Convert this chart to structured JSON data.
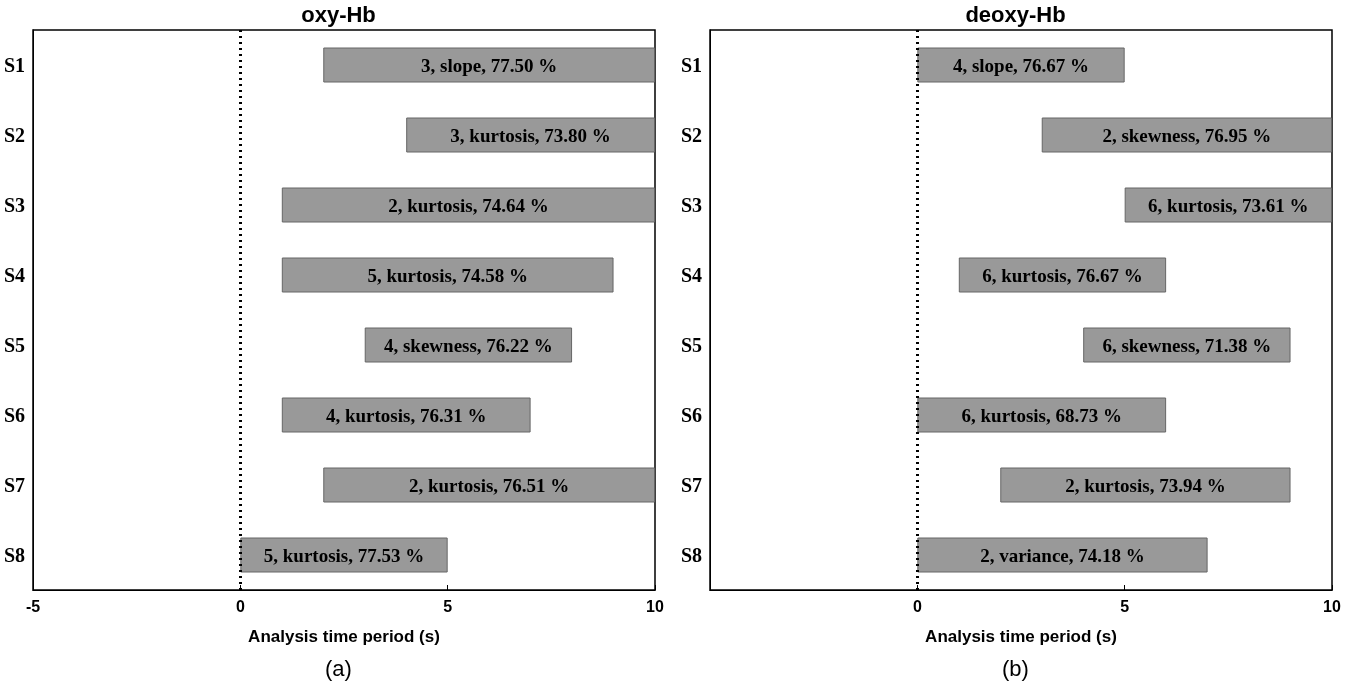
{
  "chart_data": [
    {
      "type": "bar",
      "orientation": "horizontal",
      "title": "oxy-Hb",
      "xlabel": "Analysis time period (s)",
      "categories": [
        "S1",
        "S2",
        "S3",
        "S4",
        "S5",
        "S6",
        "S7",
        "S8"
      ],
      "base": [
        2,
        4,
        1,
        1,
        3,
        1,
        2,
        0
      ],
      "values": [
        8,
        6,
        9,
        8,
        5,
        6,
        8,
        5
      ],
      "color": "#999999",
      "xlim": [
        -5,
        10
      ],
      "xticks": [
        -5,
        0,
        5,
        10
      ],
      "ref_lines": [
        {
          "axis": "x",
          "value": 0,
          "line_style": "dotted",
          "color": "#000000"
        }
      ],
      "annotations": [
        "3, slope, 77.50 %",
        "3, kurtosis, 73.80 %",
        "2, kurtosis, 74.64 %",
        "5, kurtosis, 74.58 %",
        "4, skewness, 76.22 %",
        "4, kurtosis, 76.31 %",
        "2, kurtosis, 76.51 %",
        "5, kurtosis, 77.53 %",
        "(a)"
      ]
    },
    {
      "type": "bar",
      "orientation": "horizontal",
      "title": "deoxy-Hb",
      "xlabel": "Analysis time period (s)",
      "categories": [
        "S1",
        "S2",
        "S3",
        "S4",
        "S5",
        "S6",
        "S7",
        "S8"
      ],
      "base": [
        0,
        3,
        5,
        1,
        4,
        0,
        2,
        0
      ],
      "values": [
        5,
        7,
        5,
        5,
        5,
        6,
        7,
        7
      ],
      "color": "#999999",
      "xlim": [
        -5,
        10
      ],
      "xticks": [
        0,
        5,
        10
      ],
      "ref_lines": [
        {
          "axis": "x",
          "value": 0,
          "line_style": "dotted",
          "color": "#000000"
        }
      ],
      "annotations": [
        "4, slope, 76.67 %",
        "2, skewness, 76.95 %",
        "6, kurtosis, 73.61 %",
        "6, kurtosis, 76.67 %",
        "6, skewness, 71.38 %",
        "6, kurtosis, 68.73 %",
        "2, kurtosis, 73.94 %",
        "2, variance, 74.18 %",
        "(b)"
      ]
    }
  ]
}
